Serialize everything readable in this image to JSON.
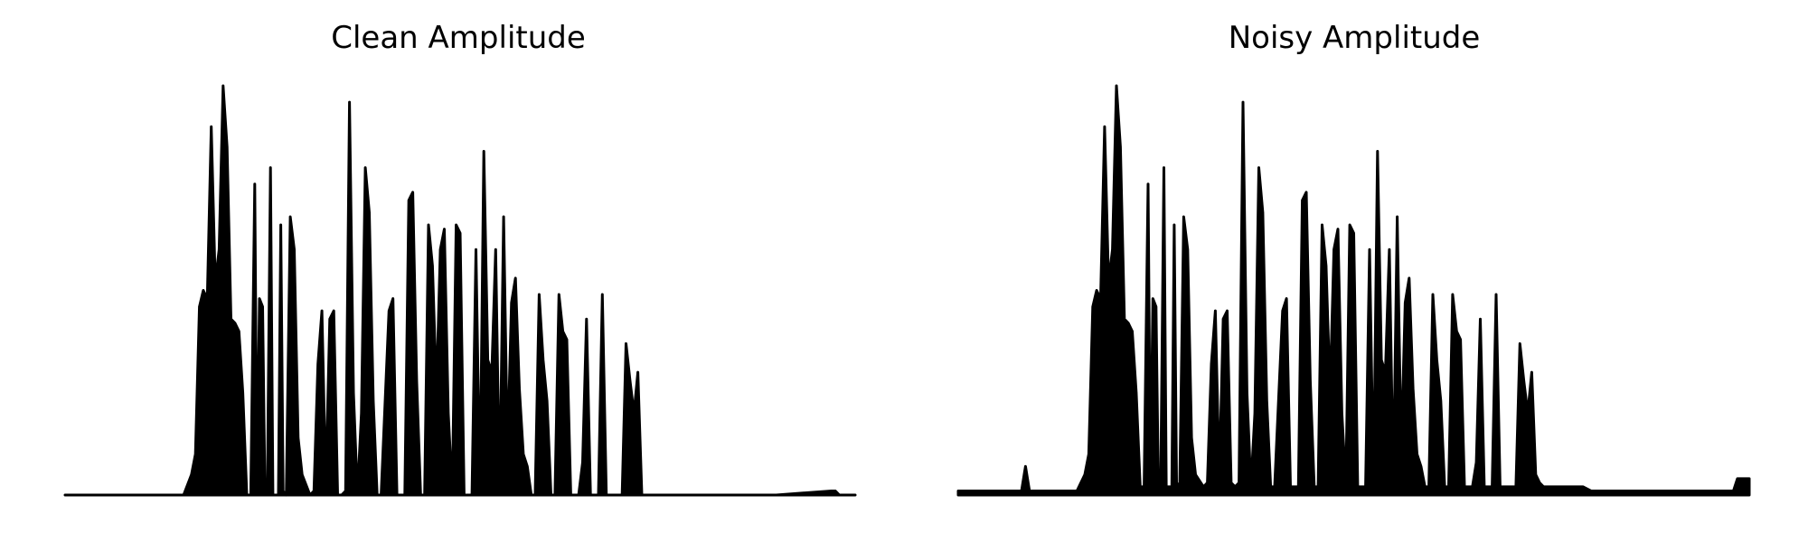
{
  "chart_data": [
    {
      "type": "area",
      "title": "Clean Amplitude",
      "xlabel": "",
      "ylabel": "",
      "axes_visible": false,
      "grid": false,
      "color": "#000000",
      "ylim": [
        0,
        1.0
      ],
      "x": [
        0.0,
        0.12,
        0.15,
        0.16,
        0.165,
        0.17,
        0.175,
        0.18,
        0.185,
        0.19,
        0.195,
        0.2,
        0.205,
        0.21,
        0.215,
        0.22,
        0.225,
        0.23,
        0.235,
        0.24,
        0.243,
        0.246,
        0.25,
        0.253,
        0.256,
        0.26,
        0.263,
        0.266,
        0.27,
        0.273,
        0.276,
        0.28,
        0.285,
        0.29,
        0.295,
        0.3,
        0.31,
        0.315,
        0.32,
        0.325,
        0.33,
        0.335,
        0.34,
        0.345,
        0.35,
        0.355,
        0.36,
        0.365,
        0.37,
        0.375,
        0.38,
        0.385,
        0.39,
        0.395,
        0.4,
        0.41,
        0.415,
        0.42,
        0.425,
        0.43,
        0.435,
        0.44,
        0.445,
        0.45,
        0.455,
        0.46,
        0.465,
        0.47,
        0.475,
        0.48,
        0.485,
        0.49,
        0.495,
        0.5,
        0.505,
        0.51,
        0.515,
        0.52,
        0.525,
        0.53,
        0.535,
        0.54,
        0.545,
        0.55,
        0.555,
        0.56,
        0.565,
        0.57,
        0.575,
        0.58,
        0.585,
        0.59,
        0.595,
        0.6,
        0.605,
        0.61,
        0.615,
        0.62,
        0.625,
        0.63,
        0.635,
        0.64,
        0.645,
        0.65,
        0.655,
        0.66,
        0.665,
        0.67,
        0.675,
        0.68,
        0.685,
        0.69,
        0.695,
        0.7,
        0.705,
        0.71,
        0.715,
        0.72,
        0.725,
        0.73,
        0.735,
        0.74,
        0.745,
        0.75,
        0.755,
        0.76,
        0.765,
        0.77,
        0.775,
        0.78,
        0.79,
        0.8,
        0.9,
        0.97,
        0.975,
        0.98,
        1.0
      ],
      "values": [
        0.0,
        0.0,
        0.0,
        0.05,
        0.1,
        0.46,
        0.5,
        0.48,
        0.9,
        0.52,
        0.6,
        1.0,
        0.85,
        0.43,
        0.42,
        0.4,
        0.25,
        0.0,
        0.0,
        0.76,
        0.0,
        0.48,
        0.46,
        0.0,
        0.0,
        0.8,
        0.0,
        0.0,
        0.0,
        0.66,
        0.01,
        0.0,
        0.68,
        0.6,
        0.14,
        0.05,
        0.0,
        0.01,
        0.32,
        0.45,
        0.02,
        0.43,
        0.45,
        0.0,
        0.0,
        0.01,
        0.96,
        0.25,
        0.0,
        0.2,
        0.8,
        0.69,
        0.23,
        0.0,
        0.0,
        0.45,
        0.48,
        0.0,
        0.0,
        0.0,
        0.72,
        0.74,
        0.28,
        0.0,
        0.0,
        0.66,
        0.56,
        0.25,
        0.6,
        0.65,
        0.2,
        0.0,
        0.66,
        0.64,
        0.0,
        0.0,
        0.0,
        0.6,
        0.0,
        0.84,
        0.33,
        0.3,
        0.6,
        0.0,
        0.68,
        0.1,
        0.47,
        0.53,
        0.26,
        0.1,
        0.07,
        0.0,
        0.0,
        0.49,
        0.33,
        0.23,
        0.0,
        0.0,
        0.49,
        0.4,
        0.38,
        0.0,
        0.0,
        0.0,
        0.08,
        0.43,
        0.0,
        0.0,
        0.0,
        0.49,
        0.0,
        0.0,
        0.0,
        0.0,
        0.0,
        0.37,
        0.28,
        0.2,
        0.3,
        0.0,
        0.0,
        0.0,
        0.0,
        0.0,
        0.0,
        0.0,
        0.0,
        0.0,
        0.0,
        0.0,
        0.0,
        0.0,
        0.0,
        0.01,
        0.01,
        0.0,
        0.0
      ]
    },
    {
      "type": "area",
      "title": "Noisy Amplitude",
      "xlabel": "",
      "ylabel": "",
      "axes_visible": false,
      "grid": false,
      "color": "#000000",
      "ylim": [
        0,
        1.0
      ],
      "x": [
        0.0,
        0.08,
        0.085,
        0.09,
        0.15,
        0.16,
        0.165,
        0.17,
        0.175,
        0.18,
        0.185,
        0.19,
        0.195,
        0.2,
        0.205,
        0.21,
        0.215,
        0.22,
        0.225,
        0.23,
        0.235,
        0.24,
        0.243,
        0.246,
        0.25,
        0.253,
        0.256,
        0.26,
        0.263,
        0.266,
        0.27,
        0.273,
        0.276,
        0.28,
        0.285,
        0.29,
        0.295,
        0.3,
        0.31,
        0.315,
        0.32,
        0.325,
        0.33,
        0.335,
        0.34,
        0.345,
        0.35,
        0.355,
        0.36,
        0.365,
        0.37,
        0.375,
        0.38,
        0.385,
        0.39,
        0.395,
        0.4,
        0.41,
        0.415,
        0.42,
        0.425,
        0.43,
        0.435,
        0.44,
        0.445,
        0.45,
        0.455,
        0.46,
        0.465,
        0.47,
        0.475,
        0.48,
        0.485,
        0.49,
        0.495,
        0.5,
        0.505,
        0.51,
        0.515,
        0.52,
        0.525,
        0.53,
        0.535,
        0.54,
        0.545,
        0.55,
        0.555,
        0.56,
        0.565,
        0.57,
        0.575,
        0.58,
        0.585,
        0.59,
        0.595,
        0.6,
        0.605,
        0.61,
        0.615,
        0.62,
        0.625,
        0.63,
        0.635,
        0.64,
        0.645,
        0.65,
        0.655,
        0.66,
        0.665,
        0.67,
        0.675,
        0.68,
        0.685,
        0.69,
        0.695,
        0.7,
        0.705,
        0.71,
        0.715,
        0.72,
        0.725,
        0.73,
        0.735,
        0.74,
        0.745,
        0.75,
        0.755,
        0.76,
        0.765,
        0.77,
        0.775,
        0.78,
        0.79,
        0.8,
        0.9,
        0.98,
        0.985,
        0.99,
        1.0
      ],
      "values": [
        0.01,
        0.01,
        0.07,
        0.01,
        0.01,
        0.05,
        0.1,
        0.46,
        0.5,
        0.48,
        0.9,
        0.52,
        0.6,
        1.0,
        0.85,
        0.43,
        0.42,
        0.4,
        0.25,
        0.02,
        0.02,
        0.76,
        0.02,
        0.48,
        0.46,
        0.02,
        0.03,
        0.8,
        0.02,
        0.02,
        0.02,
        0.66,
        0.03,
        0.02,
        0.68,
        0.6,
        0.14,
        0.05,
        0.02,
        0.03,
        0.32,
        0.45,
        0.04,
        0.43,
        0.45,
        0.03,
        0.02,
        0.03,
        0.96,
        0.25,
        0.02,
        0.2,
        0.8,
        0.69,
        0.23,
        0.02,
        0.02,
        0.45,
        0.48,
        0.02,
        0.02,
        0.02,
        0.72,
        0.74,
        0.28,
        0.02,
        0.02,
        0.66,
        0.56,
        0.25,
        0.6,
        0.65,
        0.2,
        0.02,
        0.66,
        0.64,
        0.02,
        0.02,
        0.02,
        0.6,
        0.02,
        0.84,
        0.33,
        0.3,
        0.6,
        0.02,
        0.68,
        0.1,
        0.47,
        0.53,
        0.26,
        0.1,
        0.07,
        0.02,
        0.02,
        0.49,
        0.33,
        0.23,
        0.02,
        0.02,
        0.49,
        0.4,
        0.38,
        0.02,
        0.02,
        0.02,
        0.08,
        0.43,
        0.02,
        0.02,
        0.02,
        0.49,
        0.02,
        0.02,
        0.02,
        0.02,
        0.02,
        0.37,
        0.28,
        0.2,
        0.3,
        0.05,
        0.03,
        0.02,
        0.02,
        0.02,
        0.02,
        0.02,
        0.02,
        0.02,
        0.02,
        0.02,
        0.02,
        0.01,
        0.01,
        0.01,
        0.04,
        0.04,
        0.04
      ]
    }
  ]
}
